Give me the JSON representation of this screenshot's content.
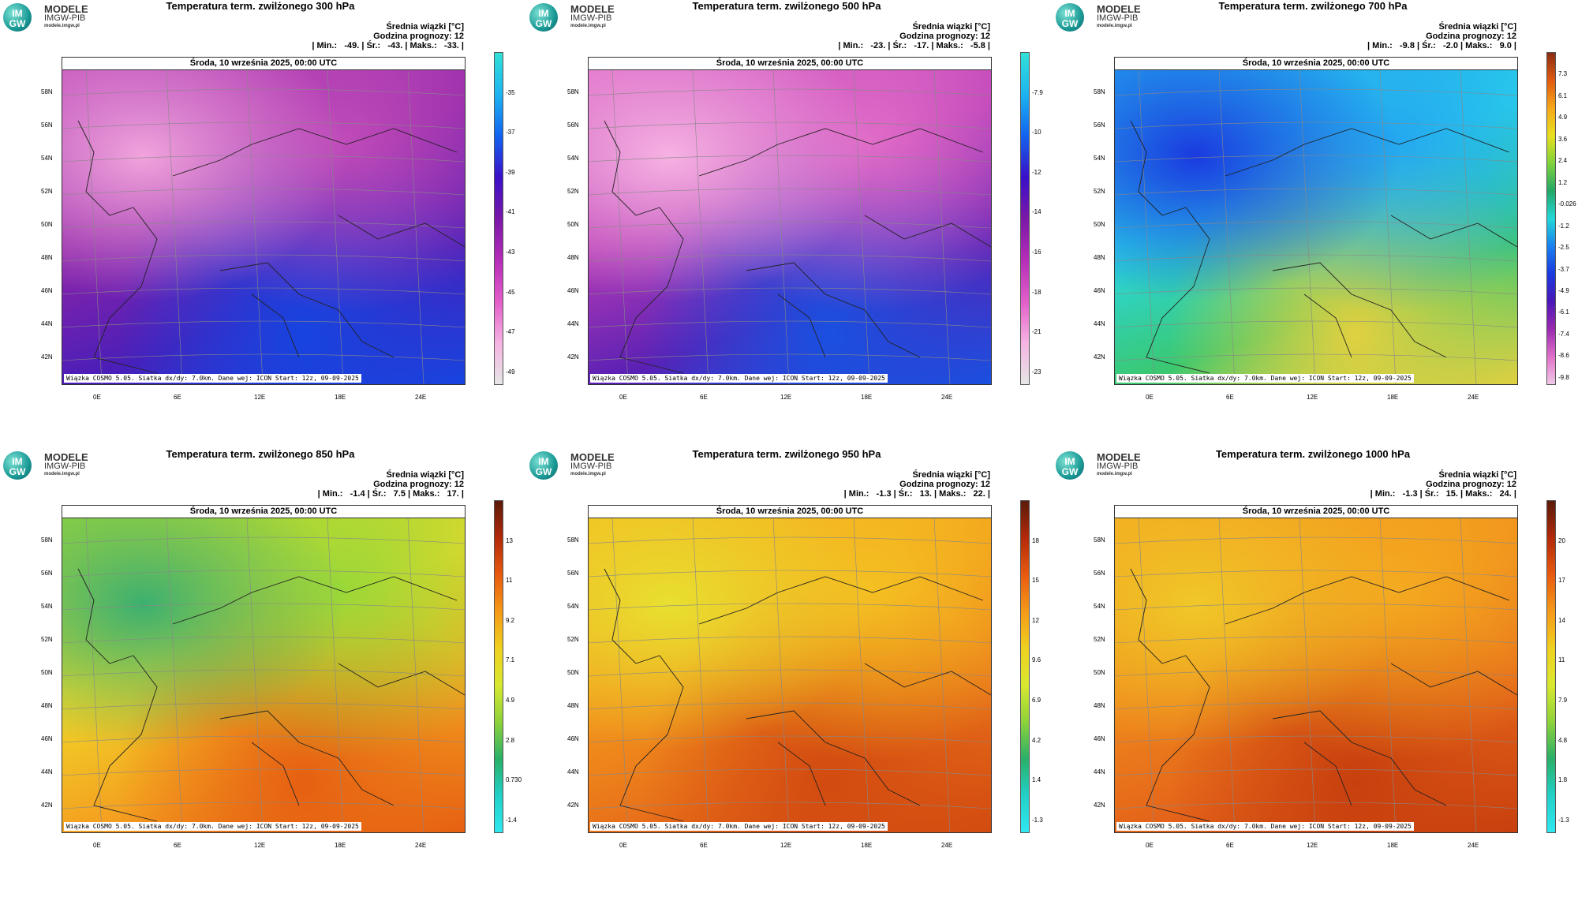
{
  "logo": {
    "line1": "MODELE",
    "line2": "IMGW-PIB",
    "line3": "modele.imgw.pl",
    "badge_top": "IM",
    "badge_bottom": "GW"
  },
  "info_line1": "Średnia wiązki [°C]",
  "info_line2": "Godzina prognozy: 12",
  "date_bar": "Środa, 10 września 2025, 00:00 UTC",
  "footer": "Wiązka COSMO 5.05. Siatka dx/dy: 7.0km. Dane wej: ICON Start: 12z, 09-09-2025",
  "lat_labels": [
    "58N",
    "56N",
    "54N",
    "52N",
    "50N",
    "48N",
    "46N",
    "44N",
    "42N"
  ],
  "lon_labels": [
    "0E",
    "6E",
    "12E",
    "18E",
    "24E"
  ],
  "panels": [
    {
      "title": "Temperatura term. zwilżonego 300 hPa",
      "stats": "| Min.:   -49. | Śr.:   -43. | Maks.:   -33. |",
      "ticks": [
        "-35",
        "-37",
        "-39",
        "-41",
        "-43",
        "-45",
        "-47",
        "-49"
      ],
      "colors": [
        "#31e1d8",
        "#1db4f0",
        "#1264f0",
        "#3a10c8",
        "#7a18a8",
        "#b52db8",
        "#e25ec9",
        "#f5b3e2",
        "#e6e6e6"
      ],
      "map_colors": [
        "#f1a3dc",
        "#c04bb9",
        "#8e24a8",
        "#4a1eb8",
        "#1744e0"
      ]
    },
    {
      "title": "Temperatura term. zwilżonego 500 hPa",
      "stats": "| Min.:   -23. | Śr.:   -17. | Maks.:   -5.8 |",
      "ticks": [
        "-7.9",
        "-10",
        "-12",
        "-14",
        "-16",
        "-18",
        "-21",
        "-23"
      ],
      "colors": [
        "#31e1d8",
        "#1db4f0",
        "#1264f0",
        "#3a10c8",
        "#7a18a8",
        "#b52db8",
        "#e25ec9",
        "#f5b3e2",
        "#e6e6e6"
      ],
      "map_colors": [
        "#f6b2e2",
        "#e06cc8",
        "#b63cb6",
        "#5a20b4",
        "#1a50e0"
      ]
    },
    {
      "title": "Temperatura term. zwilżonego 700 hPa",
      "stats": "| Min.:   -9.8 | Śr.:   -2.0 | Maks.:   9.0 |",
      "ticks": [
        "7.3",
        "6.1",
        "4.9",
        "3.6",
        "2.4",
        "1.2",
        "-0.026",
        "-1.2",
        "-2.5",
        "-3.7",
        "-4.9",
        "-6.1",
        "-7.4",
        "-8.6",
        "-9.8"
      ],
      "colors": [
        "#8b2d12",
        "#e05a10",
        "#f6a81a",
        "#e8e020",
        "#7fd23a",
        "#22a868",
        "#22d8d8",
        "#1a80f0",
        "#1a3ae0",
        "#4a18b8",
        "#9a2ab0",
        "#e070c8",
        "#f0c8e8"
      ],
      "map_colors": [
        "#1a3ae0",
        "#24a8f0",
        "#2ad8e8",
        "#3ac870",
        "#e0d040"
      ]
    },
    {
      "title": "Temperatura term. zwilżonego 850 hPa",
      "stats": "| Min.:   -1.4 | Śr.:   7.5 | Maks.:   17. |",
      "ticks": [
        "13",
        "11",
        "9.2",
        "7.1",
        "4.9",
        "2.8",
        "0.730",
        "-1.4"
      ],
      "colors": [
        "#5a1a0a",
        "#b22a0a",
        "#e85a10",
        "#f49a18",
        "#f0d020",
        "#d8e830",
        "#8ed23a",
        "#2ab068",
        "#22d0c8",
        "#30e8f0"
      ],
      "map_colors": [
        "#3cb070",
        "#9ad838",
        "#f0d828",
        "#f4a020",
        "#e66012"
      ]
    },
    {
      "title": "Temperatura term. zwilżonego 950 hPa",
      "stats": "| Min.:   -1.3 | Śr.:   13. | Maks.:   22. |",
      "ticks": [
        "18",
        "15",
        "12",
        "9.6",
        "6.9",
        "4.2",
        "1.4",
        "-1.3"
      ],
      "colors": [
        "#5a1a0a",
        "#b22a0a",
        "#e85a10",
        "#f49a18",
        "#f0d020",
        "#d8e830",
        "#8ed23a",
        "#2ab068",
        "#22d0c8",
        "#30e8f0"
      ],
      "map_colors": [
        "#e8e030",
        "#f4c022",
        "#f49a1c",
        "#e8701a",
        "#d24a10"
      ]
    },
    {
      "title": "Temperatura term. zwilżonego 1000 hPa",
      "stats": "| Min.:   -1.3 | Śr.:   15. | Maks.:   24. |",
      "ticks": [
        "20",
        "17",
        "14",
        "11",
        "7.9",
        "4.8",
        "1.8",
        "-1.3"
      ],
      "colors": [
        "#5a1a0a",
        "#b22a0a",
        "#e85a10",
        "#f49a18",
        "#f0d020",
        "#d8e830",
        "#8ed23a",
        "#2ab068",
        "#22d0c8",
        "#30e8f0"
      ],
      "map_colors": [
        "#f0c828",
        "#f4aa20",
        "#f08a1c",
        "#e4641a",
        "#c8400e"
      ]
    }
  ]
}
